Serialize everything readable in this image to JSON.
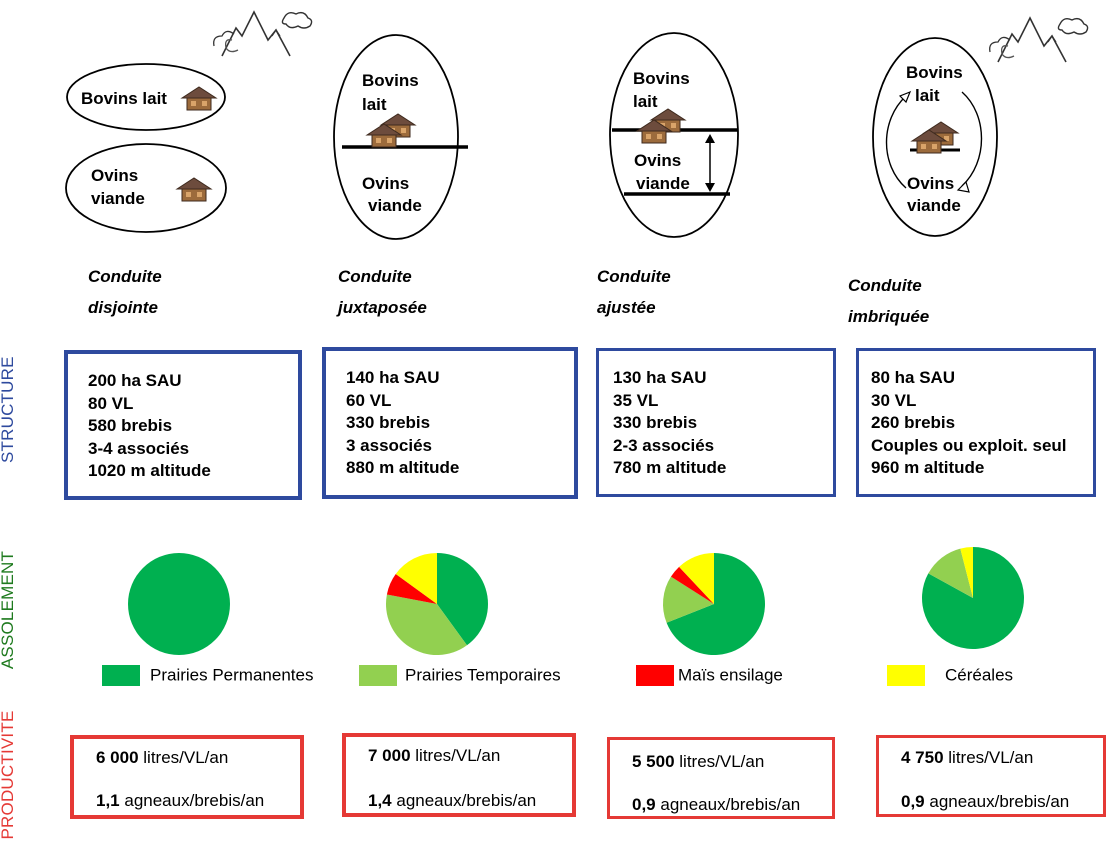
{
  "side_labels": {
    "structure": "STRUCTURE",
    "assolement": "ASSOLEMENT",
    "productivite": "PRODUCTIVITE"
  },
  "colors": {
    "structure": "#2e4a9e",
    "assolement": "#1e7a1e",
    "productivite": "#e53935",
    "prairies_permanentes": "#00b050",
    "prairies_temporaires": "#92d050",
    "mais_ensilage": "#ff0000",
    "cereales": "#ffff00"
  },
  "diagrams": [
    {
      "top_label": "Bovins lait",
      "bottom_label_1": "Ovins",
      "bottom_label_2": "viande"
    },
    {
      "top_label_1": "Bovins",
      "top_label_2": "lait",
      "bottom_label_1": "Ovins",
      "bottom_label_2": "viande"
    },
    {
      "top_label_1": "Bovins",
      "top_label_2": "lait",
      "bottom_label_1": "Ovins",
      "bottom_label_2": "viande"
    },
    {
      "top_label_1": "Bovins",
      "top_label_2": "lait",
      "bottom_label_1": "Ovins",
      "bottom_label_2": "viande"
    }
  ],
  "modes": [
    {
      "line1": "Conduite",
      "line2": "disjointe"
    },
    {
      "line1": "Conduite",
      "line2": "juxtaposée"
    },
    {
      "line1": "Conduite",
      "line2": "ajustée"
    },
    {
      "line1": "Conduite",
      "line2": "imbriquée"
    }
  ],
  "structure": [
    [
      "200 ha SAU",
      "80 VL",
      "580 brebis",
      "3-4 associés",
      "1020 m altitude"
    ],
    [
      "140 ha SAU",
      "60 VL",
      "330 brebis",
      "3 associés",
      "880 m altitude"
    ],
    [
      "130 ha SAU",
      "35 VL",
      "330 brebis",
      "2-3 associés",
      "780 m altitude"
    ],
    [
      "80 ha SAU",
      "30 VL",
      "260 brebis",
      "Couples ou exploit. seul",
      "960 m altitude"
    ]
  ],
  "chart_data": {
    "type": "pie",
    "title": "",
    "legend": [
      "Prairies Permanentes",
      "Prairies Temporaires",
      "Maïs ensilage",
      "Céréales"
    ],
    "categories": [
      "Prairies Permanentes",
      "Prairies Temporaires",
      "Maïs ensilage",
      "Céréales"
    ],
    "series": [
      {
        "name": "Conduite disjointe",
        "values": [
          100,
          0,
          0,
          0
        ]
      },
      {
        "name": "Conduite juxtaposée",
        "values": [
          40,
          38,
          7,
          15
        ]
      },
      {
        "name": "Conduite ajustée",
        "values": [
          69,
          15,
          4,
          12
        ]
      },
      {
        "name": "Conduite imbriquée",
        "values": [
          83,
          13,
          0,
          4
        ]
      }
    ]
  },
  "productivity": [
    {
      "milk_value": "6 000",
      "milk_unit": " litres/VL/an",
      "lamb_value": "1,1",
      "lamb_unit": " agneaux/brebis/an"
    },
    {
      "milk_value": "7 000",
      "milk_unit": " litres/VL/an",
      "lamb_value": "1,4",
      "lamb_unit": " agneaux/brebis/an"
    },
    {
      "milk_value": "5 500",
      "milk_unit": " litres/VL/an",
      "lamb_value": "0,9",
      "lamb_unit": " agneaux/brebis/an"
    },
    {
      "milk_value": "4 750",
      "milk_unit": " litres/VL/an",
      "lamb_value": "0,9",
      "lamb_unit": " agneaux/brebis/an"
    }
  ]
}
